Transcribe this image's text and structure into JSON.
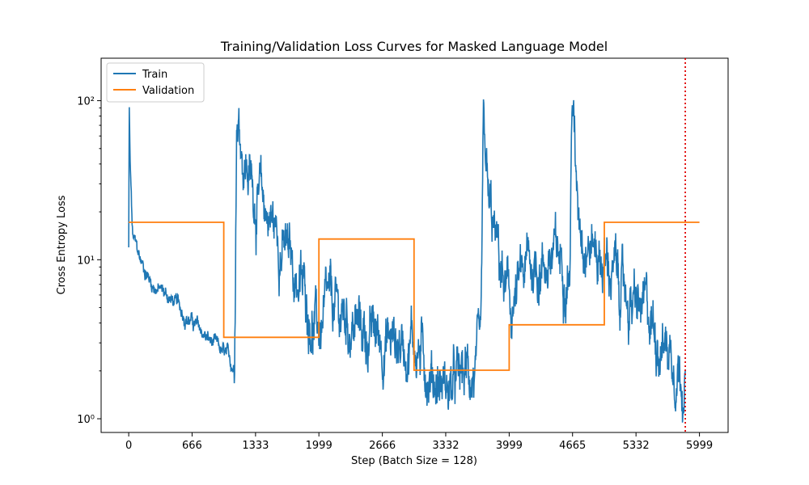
{
  "chart_data": {
    "type": "line",
    "title": "Training/Validation Loss Curves for Masked Language Model",
    "xlabel": "Step (Batch Size = 128)",
    "ylabel": "Cross Entropy Loss",
    "y_scale": "log",
    "xlim": [
      -290,
      6300
    ],
    "ylim": [
      0.82,
      185
    ],
    "x_ticks": [
      0,
      666,
      1333,
      1999,
      2666,
      3332,
      3999,
      4665,
      5332,
      5999
    ],
    "y_ticks": [
      1,
      10,
      100
    ],
    "y_tick_labels": [
      "10⁰",
      "10¹",
      "10²"
    ],
    "grid": false,
    "legend_position": "top-left",
    "series": [
      {
        "name": "Train",
        "color": "#1f77b4",
        "anchors": [
          [
            0,
            12
          ],
          [
            5,
            93
          ],
          [
            15,
            40
          ],
          [
            40,
            14
          ],
          [
            120,
            10
          ],
          [
            250,
            7
          ],
          [
            400,
            6
          ],
          [
            600,
            4.5
          ],
          [
            800,
            3.3
          ],
          [
            1000,
            2.5
          ],
          [
            1110,
            2.1
          ],
          [
            1122,
            15
          ],
          [
            1135,
            105
          ],
          [
            1200,
            50
          ],
          [
            1333,
            25
          ],
          [
            1500,
            18
          ],
          [
            1650,
            11
          ],
          [
            1850,
            6
          ],
          [
            1990,
            3.5
          ],
          [
            2100,
            4.5
          ],
          [
            2300,
            4.2
          ],
          [
            2500,
            3.4
          ],
          [
            2700,
            3.2
          ],
          [
            2900,
            3
          ],
          [
            2985,
            3.5
          ],
          [
            3000,
            3
          ],
          [
            3200,
            1.9
          ],
          [
            3400,
            1.5
          ],
          [
            3600,
            2
          ],
          [
            3700,
            2
          ],
          [
            3730,
            55
          ],
          [
            3780,
            20
          ],
          [
            3900,
            9
          ],
          [
            4010,
            4.5
          ],
          [
            4200,
            9
          ],
          [
            4400,
            10
          ],
          [
            4640,
            10
          ],
          [
            4660,
            140
          ],
          [
            4700,
            30
          ],
          [
            4800,
            15
          ],
          [
            4990,
            10
          ],
          [
            5100,
            8
          ],
          [
            5300,
            5
          ],
          [
            5500,
            4
          ],
          [
            5650,
            3
          ],
          [
            5750,
            2.5
          ],
          [
            5850,
            2
          ]
        ]
      },
      {
        "name": "Validation",
        "color": "#ff7f0e",
        "steps": [
          [
            0,
            17.2
          ],
          [
            999,
            17.2
          ],
          [
            999,
            3.25
          ],
          [
            1999,
            3.25
          ],
          [
            1999,
            13.5
          ],
          [
            2999,
            13.5
          ],
          [
            2999,
            2.02
          ],
          [
            3999,
            2.02
          ],
          [
            3999,
            3.9
          ],
          [
            4999,
            3.9
          ],
          [
            4999,
            17.2
          ],
          [
            5999,
            17.2
          ]
        ]
      }
    ],
    "vertical_marker": {
      "x": 5850,
      "color": "#e00000",
      "style": "dotted"
    }
  }
}
